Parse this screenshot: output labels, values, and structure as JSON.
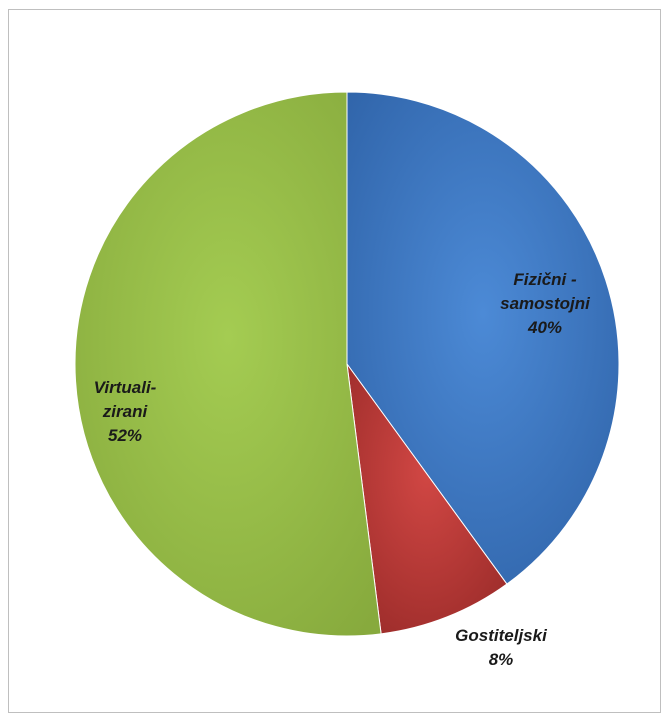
{
  "chart_data": {
    "type": "pie",
    "title": "",
    "slices": [
      {
        "label_lines": [
          "Fizični -",
          "samostojni"
        ],
        "percent_text": "40%",
        "value": 40,
        "color": "#3f7ec9"
      },
      {
        "label_lines": [
          "Gostiteljski"
        ],
        "percent_text": "8%",
        "value": 8,
        "color": "#c43c3a"
      },
      {
        "label_lines": [
          "Virtuali-",
          "zirani"
        ],
        "percent_text": "52%",
        "value": 52,
        "color": "#9bc14b"
      }
    ],
    "legend": "none",
    "data_labels": true,
    "start_angle": "12 o'clock, clockwise"
  }
}
